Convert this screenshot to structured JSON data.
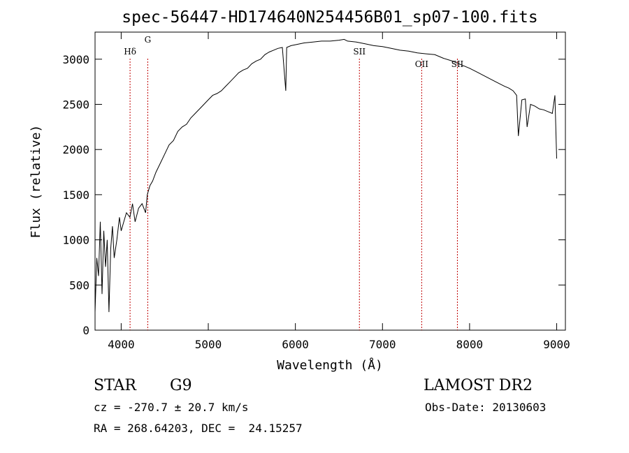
{
  "chart_data": {
    "type": "line",
    "title": "spec-56447-HD174640N254456B01_sp07-100.fits",
    "xlabel": "Wavelength (Å)",
    "ylabel": "Flux (relative)",
    "xlim": [
      3700,
      9100
    ],
    "ylim": [
      0,
      3300
    ],
    "xticks": [
      4000,
      5000,
      6000,
      7000,
      8000,
      9000
    ],
    "yticks": [
      0,
      500,
      1000,
      1500,
      2000,
      2500,
      3000
    ],
    "grid": false,
    "line_color": "#000000",
    "marker_color": "#c00000",
    "series": [
      {
        "x": [
          3700,
          3720,
          3740,
          3760,
          3780,
          3800,
          3820,
          3840,
          3860,
          3880,
          3900,
          3920,
          3950,
          3980,
          4000,
          4030,
          4060,
          4100,
          4130,
          4160,
          4200,
          4240,
          4280,
          4300,
          4330,
          4360,
          4400,
          4450,
          4500,
          4550,
          4600,
          4650,
          4700,
          4750,
          4800,
          4850,
          4900,
          4950,
          5000,
          5050,
          5100,
          5150,
          5200,
          5250,
          5300,
          5350,
          5400,
          5450,
          5500,
          5550,
          5600,
          5650,
          5700,
          5750,
          5800,
          5850,
          5890,
          5900,
          5950,
          6000,
          6100,
          6200,
          6300,
          6400,
          6500,
          6560,
          6600,
          6700,
          6800,
          6900,
          7000,
          7100,
          7200,
          7300,
          7400,
          7500,
          7600,
          7700,
          7800,
          7900,
          8000,
          8100,
          8200,
          8300,
          8400,
          8450,
          8500,
          8540,
          8560,
          8600,
          8640,
          8660,
          8700,
          8750,
          8800,
          8850,
          8900,
          8950,
          8980,
          9000
        ],
        "values": [
          200,
          800,
          600,
          1200,
          400,
          1100,
          700,
          1000,
          200,
          900,
          1150,
          800,
          1000,
          1250,
          1100,
          1200,
          1300,
          1250,
          1400,
          1200,
          1350,
          1400,
          1300,
          1500,
          1600,
          1650,
          1750,
          1850,
          1950,
          2050,
          2100,
          2200,
          2250,
          2280,
          2350,
          2400,
          2450,
          2500,
          2550,
          2600,
          2620,
          2650,
          2700,
          2750,
          2800,
          2850,
          2880,
          2900,
          2950,
          2980,
          3000,
          3050,
          3080,
          3100,
          3120,
          3130,
          2650,
          3130,
          3150,
          3160,
          3180,
          3190,
          3200,
          3200,
          3210,
          3220,
          3200,
          3190,
          3170,
          3150,
          3140,
          3120,
          3100,
          3090,
          3070,
          3060,
          3050,
          3010,
          2980,
          2940,
          2900,
          2850,
          2800,
          2750,
          2700,
          2680,
          2650,
          2600,
          2150,
          2550,
          2560,
          2250,
          2500,
          2480,
          2450,
          2440,
          2420,
          2400,
          2600,
          1900
        ]
      }
    ],
    "line_markers": [
      {
        "label": "Hδ",
        "x": 4102
      },
      {
        "label": "G",
        "x": 4305
      },
      {
        "label": "SII",
        "x": 6735
      },
      {
        "label": "OII",
        "x": 7450
      },
      {
        "label": "SII",
        "x": 7860
      }
    ]
  },
  "info": {
    "object_class": "STAR",
    "subclass": "G9",
    "survey": "LAMOST DR2",
    "cz": "cz = -270.7 ± 20.7 km/s",
    "obs_date": "Obs-Date: 20130603",
    "coords": "RA = 268.64203, DEC =  24.15257"
  }
}
